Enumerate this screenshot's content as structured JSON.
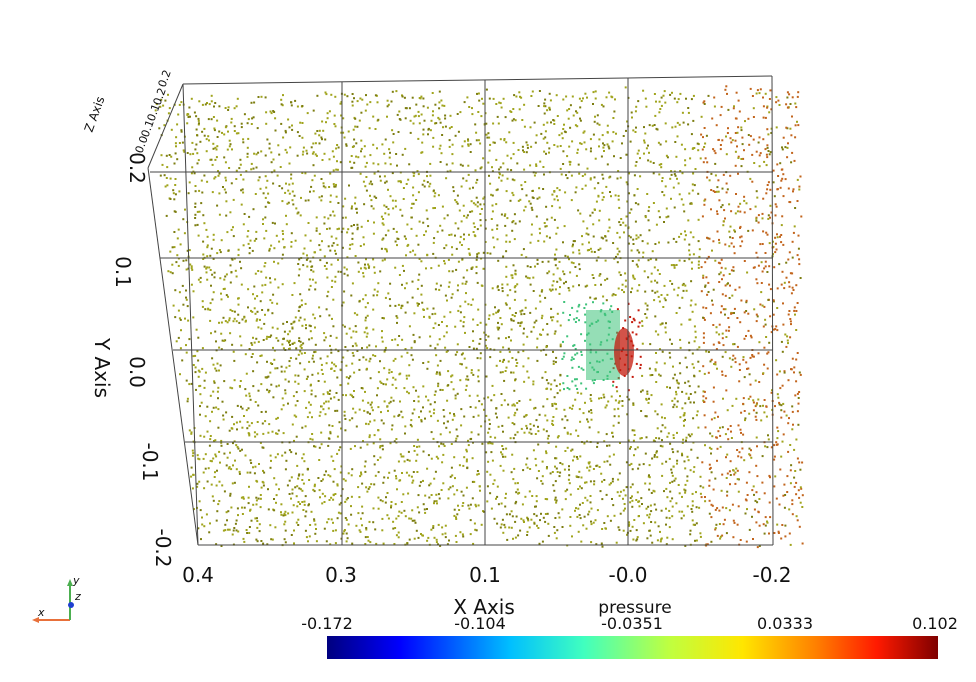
{
  "x_axis": {
    "title": "X Axis",
    "ticks": [
      "0.4",
      "0.3",
      "0.1",
      "-0.0",
      "-0.2"
    ]
  },
  "y_axis": {
    "title": "Y Axis",
    "ticks": [
      "0.2",
      "0.1",
      "0.0",
      "-0.1",
      "-0.2"
    ]
  },
  "z_axis": {
    "title": "Z Axis",
    "ticks": [
      "0.2",
      "0.2",
      "0.1",
      "0.1",
      "0.0"
    ]
  },
  "colorbar": {
    "title": "pressure",
    "ticks": [
      "-0.172",
      "-0.104",
      "-0.0351",
      "0.0333",
      "0.102"
    ],
    "colors": [
      "#00007f",
      "#0000ff",
      "#00bfff",
      "#40ffbf",
      "#bfff40",
      "#ffe600",
      "#ff8000",
      "#ff1a00",
      "#7f0000"
    ]
  },
  "orientation": {
    "x_label": "x",
    "y_label": "y",
    "z_label": "z",
    "x_color": "#e8703a",
    "y_color": "#4caf50",
    "z_color": "#1e40d0"
  },
  "colors": {
    "points_main": "#a0a41c",
    "points_dark": "#7c7d10",
    "points_right": "#c2641c",
    "hotspot_green": "#3ec27a",
    "hotspot_red": "#c41a0c",
    "grid": "#444444"
  }
}
